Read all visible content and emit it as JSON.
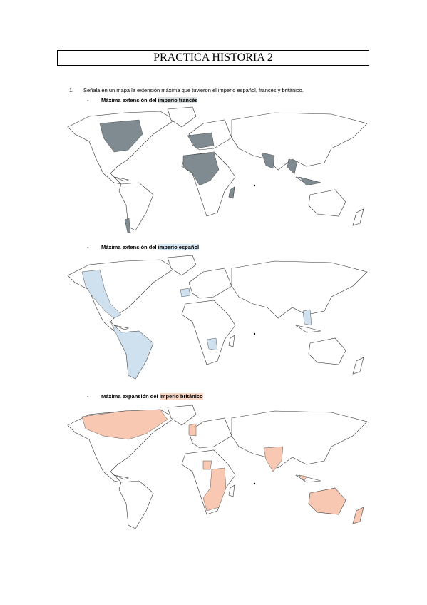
{
  "header": {
    "title": "PRACTICA HISTORIA 2"
  },
  "question": {
    "number": "1.",
    "text": "Señala en un mapa la extensión máxima que tuvieron el imperio español, francés y británico."
  },
  "sections": [
    {
      "bullet": "-",
      "prefix": "Máxima extensión del ",
      "highlight": "imperio francés"
    },
    {
      "bullet": "-",
      "prefix": "Máxima extensión del ",
      "highlight": "imperio español"
    },
    {
      "bullet": "-",
      "prefix": "Máxima expansión del ",
      "highlight": "imperio británico"
    }
  ]
}
